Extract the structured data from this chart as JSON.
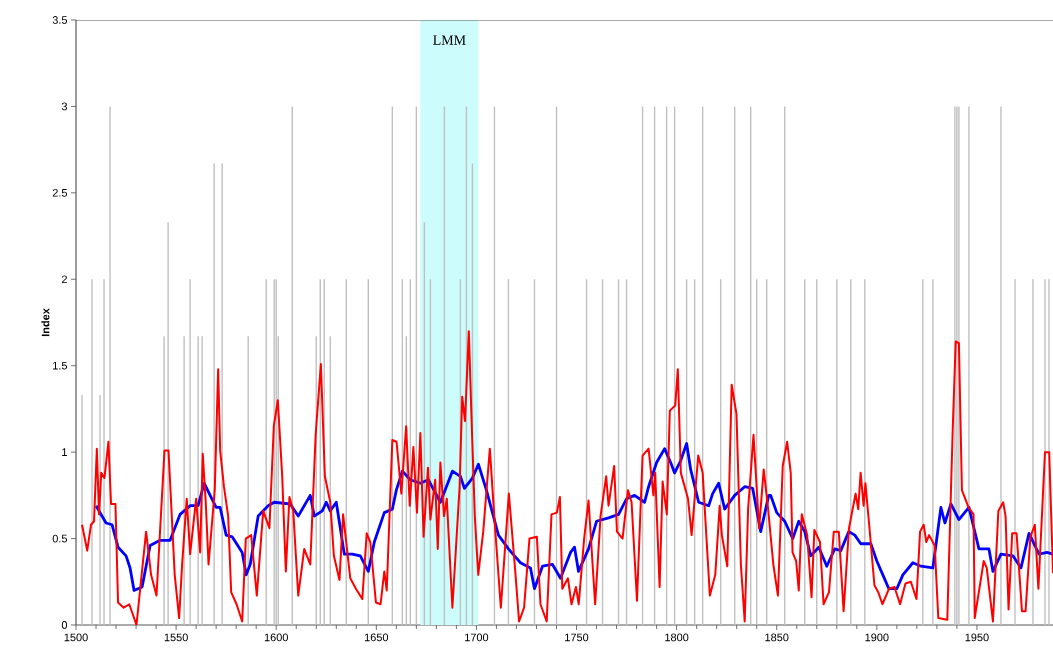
{
  "chart_data": {
    "type": "line",
    "ylabel": "Index",
    "xlim": [
      1500,
      1988
    ],
    "xticks": [
      1500,
      1550,
      1600,
      1650,
      1700,
      1750,
      1800,
      1850,
      1900,
      1950
    ],
    "ylim": [
      0,
      3.5
    ],
    "yticks": [
      0,
      0.5,
      1,
      1.5,
      2,
      2.5,
      3,
      3.5
    ],
    "bands": [
      {
        "axis": "x",
        "from": 1672,
        "to": 1701,
        "label": "LMM",
        "color": "#ccfcfc"
      }
    ],
    "series": [
      {
        "type": "bar",
        "color": "#c0c0c0",
        "x": [
          1503,
          1508,
          1512,
          1514,
          1517,
          1544,
          1546,
          1554,
          1557,
          1561,
          1563,
          1569,
          1573,
          1586,
          1595,
          1599,
          1600,
          1601,
          1608,
          1620,
          1622,
          1624,
          1627,
          1635,
          1646,
          1658,
          1663,
          1665,
          1667,
          1670,
          1674,
          1677,
          1684,
          1692,
          1695,
          1698,
          1709,
          1716,
          1729,
          1740,
          1755,
          1763,
          1771,
          1775,
          1783,
          1789,
          1795,
          1799,
          1805,
          1809,
          1813,
          1822,
          1829,
          1837,
          1840,
          1845,
          1854,
          1864,
          1870,
          1880,
          1887,
          1894,
          1923,
          1928,
          1939,
          1940,
          1941,
          1946,
          1962,
          1969,
          1978,
          1984,
          1986
        ],
        "values": [
          1.33,
          2,
          1.33,
          2,
          3,
          1.67,
          2.33,
          1.67,
          2,
          1.67,
          1.67,
          2.67,
          2.67,
          1.67,
          2,
          2,
          2,
          1.67,
          3,
          1.67,
          2,
          2,
          1.67,
          2,
          2,
          3,
          2,
          1.67,
          2,
          3,
          2.33,
          2,
          3,
          2,
          3,
          2.67,
          3,
          2,
          2,
          3,
          2,
          2,
          2,
          2,
          3,
          3,
          3,
          3,
          2,
          2,
          3,
          2,
          3,
          3,
          2,
          2,
          3,
          2,
          2,
          2,
          2,
          2,
          2,
          2,
          3,
          3,
          3,
          3,
          3,
          2,
          2,
          2,
          2
        ]
      },
      {
        "color": "#0000ff",
        "x": [
          1510,
          1515,
          1518,
          1521,
          1525,
          1527,
          1529,
          1533,
          1537,
          1542,
          1547,
          1552,
          1557,
          1561,
          1564,
          1567,
          1570,
          1572,
          1575,
          1578,
          1583,
          1585,
          1587,
          1591,
          1596,
          1599,
          1607,
          1611,
          1615,
          1617,
          1619,
          1623,
          1625,
          1627,
          1630,
          1634,
          1638,
          1642,
          1646,
          1649,
          1654,
          1658,
          1660,
          1663,
          1667,
          1672,
          1676,
          1682,
          1685,
          1688,
          1692,
          1694,
          1698,
          1701,
          1705,
          1711,
          1716,
          1722,
          1727,
          1729,
          1733,
          1738,
          1742,
          1747,
          1749,
          1751,
          1756,
          1760,
          1766,
          1771,
          1775,
          1779,
          1784,
          1786,
          1790,
          1794,
          1797,
          1799,
          1802,
          1805,
          1807,
          1811,
          1816,
          1818,
          1821,
          1824,
          1829,
          1834,
          1838,
          1842,
          1846,
          1847,
          1850,
          1854,
          1858,
          1861,
          1864,
          1867,
          1871,
          1875,
          1879,
          1882,
          1886,
          1889,
          1892,
          1897,
          1900,
          1903,
          1906,
          1910,
          1913,
          1918,
          1922,
          1928,
          1932,
          1934,
          1937,
          1941,
          1946,
          1951,
          1956,
          1958,
          1962,
          1968,
          1972,
          1976,
          1981,
          1985,
          1988
        ],
        "values": [
          0.69,
          0.59,
          0.58,
          0.45,
          0.4,
          0.33,
          0.2,
          0.22,
          0.46,
          0.49,
          0.49,
          0.64,
          0.69,
          0.69,
          0.82,
          0.75,
          0.68,
          0.68,
          0.52,
          0.51,
          0.42,
          0.29,
          0.35,
          0.63,
          0.69,
          0.71,
          0.7,
          0.63,
          0.71,
          0.75,
          0.63,
          0.66,
          0.71,
          0.66,
          0.71,
          0.41,
          0.41,
          0.4,
          0.31,
          0.48,
          0.65,
          0.67,
          0.78,
          0.89,
          0.84,
          0.82,
          0.84,
          0.71,
          0.8,
          0.89,
          0.86,
          0.79,
          0.85,
          0.93,
          0.78,
          0.52,
          0.44,
          0.36,
          0.33,
          0.21,
          0.34,
          0.35,
          0.27,
          0.42,
          0.45,
          0.31,
          0.44,
          0.6,
          0.62,
          0.64,
          0.73,
          0.75,
          0.71,
          0.8,
          0.94,
          1.02,
          0.94,
          0.88,
          0.95,
          1.05,
          0.9,
          0.71,
          0.69,
          0.76,
          0.82,
          0.67,
          0.75,
          0.8,
          0.79,
          0.54,
          0.75,
          0.75,
          0.65,
          0.6,
          0.5,
          0.6,
          0.54,
          0.4,
          0.45,
          0.34,
          0.44,
          0.43,
          0.54,
          0.52,
          0.47,
          0.47,
          0.37,
          0.29,
          0.21,
          0.21,
          0.29,
          0.36,
          0.34,
          0.33,
          0.68,
          0.59,
          0.7,
          0.61,
          0.68,
          0.44,
          0.44,
          0.31,
          0.41,
          0.4,
          0.33,
          0.53,
          0.41,
          0.42,
          0.41
        ]
      },
      {
        "color": "#ff0000",
        "x": [
          1503,
          1505.6,
          1507.5,
          1509,
          1510.4,
          1511.5,
          1512.6,
          1514.2,
          1516.2,
          1517.5,
          1519.7,
          1521,
          1523.8,
          1526.6,
          1530.2,
          1535,
          1537.5,
          1540.2,
          1544.2,
          1546.2,
          1549.3,
          1551.5,
          1553,
          1555.3,
          1557,
          1560,
          1562,
          1563.3,
          1564.8,
          1566.2,
          1569.3,
          1571,
          1572,
          1573.9,
          1576,
          1577.5,
          1580.2,
          1583,
          1584.8,
          1587.5,
          1590.3,
          1593.5,
          1596.6,
          1598.8,
          1600.8,
          1603,
          1604.8,
          1606.6,
          1608.5,
          1611,
          1614,
          1617,
          1619.7,
          1622.3,
          1624.3,
          1627,
          1628.8,
          1631.6,
          1633.4,
          1637,
          1639.8,
          1643,
          1645.2,
          1647,
          1649.8,
          1652.1,
          1654,
          1655.2,
          1658,
          1660.1,
          1662.5,
          1664.9,
          1666.7,
          1668.5,
          1670.3,
          1672,
          1673.6,
          1675.8,
          1677,
          1679.4,
          1680.7,
          1682,
          1683.8,
          1685.2,
          1688,
          1691.6,
          1692.9,
          1694.3,
          1696.2,
          1697.6,
          1699.2,
          1700.9,
          1703.4,
          1706.7,
          1708.9,
          1712.2,
          1716.2,
          1719.4,
          1721.3,
          1723.8,
          1726.5,
          1730.2,
          1732,
          1735.1,
          1737.5,
          1740.2,
          1741.7,
          1742.9,
          1745.7,
          1747.5,
          1749.7,
          1751.1,
          1753.8,
          1756,
          1759.3,
          1762,
          1764.8,
          1766,
          1768.8,
          1770.2,
          1773,
          1775.7,
          1777.5,
          1780.2,
          1783,
          1786,
          1788.4,
          1789.3,
          1791.5,
          1793,
          1795.1,
          1796.6,
          1799.3,
          1800.6,
          1802.1,
          1805.7,
          1807.5,
          1810.8,
          1813,
          1816.6,
          1819.3,
          1821.5,
          1822.6,
          1825.3,
          1827.5,
          1829.9,
          1832.1,
          1834,
          1835.7,
          1838.4,
          1841.2,
          1843.5,
          1845.7,
          1848.3,
          1850.6,
          1853,
          1855.2,
          1857,
          1857.9,
          1859.7,
          1861,
          1862.5,
          1865.2,
          1867.4,
          1868.8,
          1871.6,
          1873.4,
          1876.1,
          1878.5,
          1881,
          1883.4,
          1886.1,
          1889.4,
          1890.7,
          1891.9,
          1893.4,
          1894.3,
          1896.1,
          1898.8,
          1900.7,
          1902.8,
          1906.1,
          1908.8,
          1911.6,
          1914.3,
          1917,
          1919.8,
          1921.6,
          1923.4,
          1924.7,
          1926.1,
          1928.9,
          1930.7,
          1935.2,
          1937.9,
          1939.4,
          1941,
          1942.5,
          1945.8,
          1948.3,
          1948.9,
          1953.4,
          1954.9,
          1958,
          1960.7,
          1963.1,
          1964.3,
          1965.8,
          1967.6,
          1969.8,
          1972.5,
          1974.3,
          1976.7,
          1978.9,
          1980.7,
          1984,
          1986.1,
          1988
        ],
        "values": [
          0.58,
          0.43,
          0.58,
          0.6,
          1.02,
          0.64,
          0.88,
          0.85,
          1.06,
          0.7,
          0.7,
          0.13,
          0.1,
          0.12,
          0,
          0.54,
          0.29,
          0.17,
          1.01,
          1.01,
          0.29,
          0.04,
          0.35,
          0.73,
          0.41,
          0.73,
          0.42,
          0.99,
          0.71,
          0.35,
          0.78,
          1.48,
          1.01,
          0.8,
          0.63,
          0.19,
          0.12,
          0.02,
          0.5,
          0.52,
          0.17,
          0.66,
          0.56,
          1.15,
          1.3,
          0.86,
          0.31,
          0.74,
          0.66,
          0.17,
          0.44,
          0.35,
          1.1,
          1.51,
          0.86,
          0.71,
          0.4,
          0.26,
          0.64,
          0.27,
          0.21,
          0.15,
          0.53,
          0.48,
          0.13,
          0.12,
          0.31,
          0.2,
          1.07,
          1.06,
          0.76,
          1.15,
          0.69,
          1.03,
          0.65,
          1.11,
          0.51,
          0.91,
          0.61,
          0.84,
          0.44,
          0.94,
          0.63,
          0.73,
          0.1,
          0.8,
          1.32,
          1.18,
          1.7,
          1.18,
          0.63,
          0.29,
          0.54,
          1.02,
          0.63,
          0.1,
          0.76,
          0.31,
          0.02,
          0.1,
          0.5,
          0.51,
          0.12,
          0.02,
          0.64,
          0.65,
          0.74,
          0.21,
          0.27,
          0.12,
          0.22,
          0.12,
          0.5,
          0.72,
          0.12,
          0.63,
          0.86,
          0.69,
          0.92,
          0.54,
          0.5,
          0.78,
          0.71,
          0.14,
          0.98,
          1.02,
          0.75,
          0.88,
          0.22,
          0.83,
          0.64,
          1.24,
          1.27,
          1.48,
          0.88,
          0.73,
          0.52,
          0.98,
          0.88,
          0.17,
          0.29,
          0.69,
          0.52,
          0.34,
          1.39,
          1.22,
          0.35,
          0.02,
          0.67,
          1.1,
          0.56,
          0.9,
          0.67,
          0.35,
          0.17,
          0.92,
          1.06,
          0.88,
          0.42,
          0.37,
          0.2,
          0.64,
          0.52,
          0.16,
          0.55,
          0.48,
          0.12,
          0.19,
          0.54,
          0.54,
          0.08,
          0.56,
          0.76,
          0.67,
          0.88,
          0.69,
          0.82,
          0.59,
          0.23,
          0.19,
          0.12,
          0.21,
          0.22,
          0.12,
          0.24,
          0.25,
          0.15,
          0.54,
          0.58,
          0.48,
          0.52,
          0.46,
          0.04,
          0.03,
          1.13,
          1.64,
          1.63,
          0.78,
          0.68,
          0.64,
          0.04,
          0.37,
          0.33,
          0.02,
          0.66,
          0.71,
          0.63,
          0.09,
          0.53,
          0.53,
          0.08,
          0.08,
          0.51,
          0.58,
          0.21,
          1,
          1,
          0.3
        ]
      }
    ]
  }
}
